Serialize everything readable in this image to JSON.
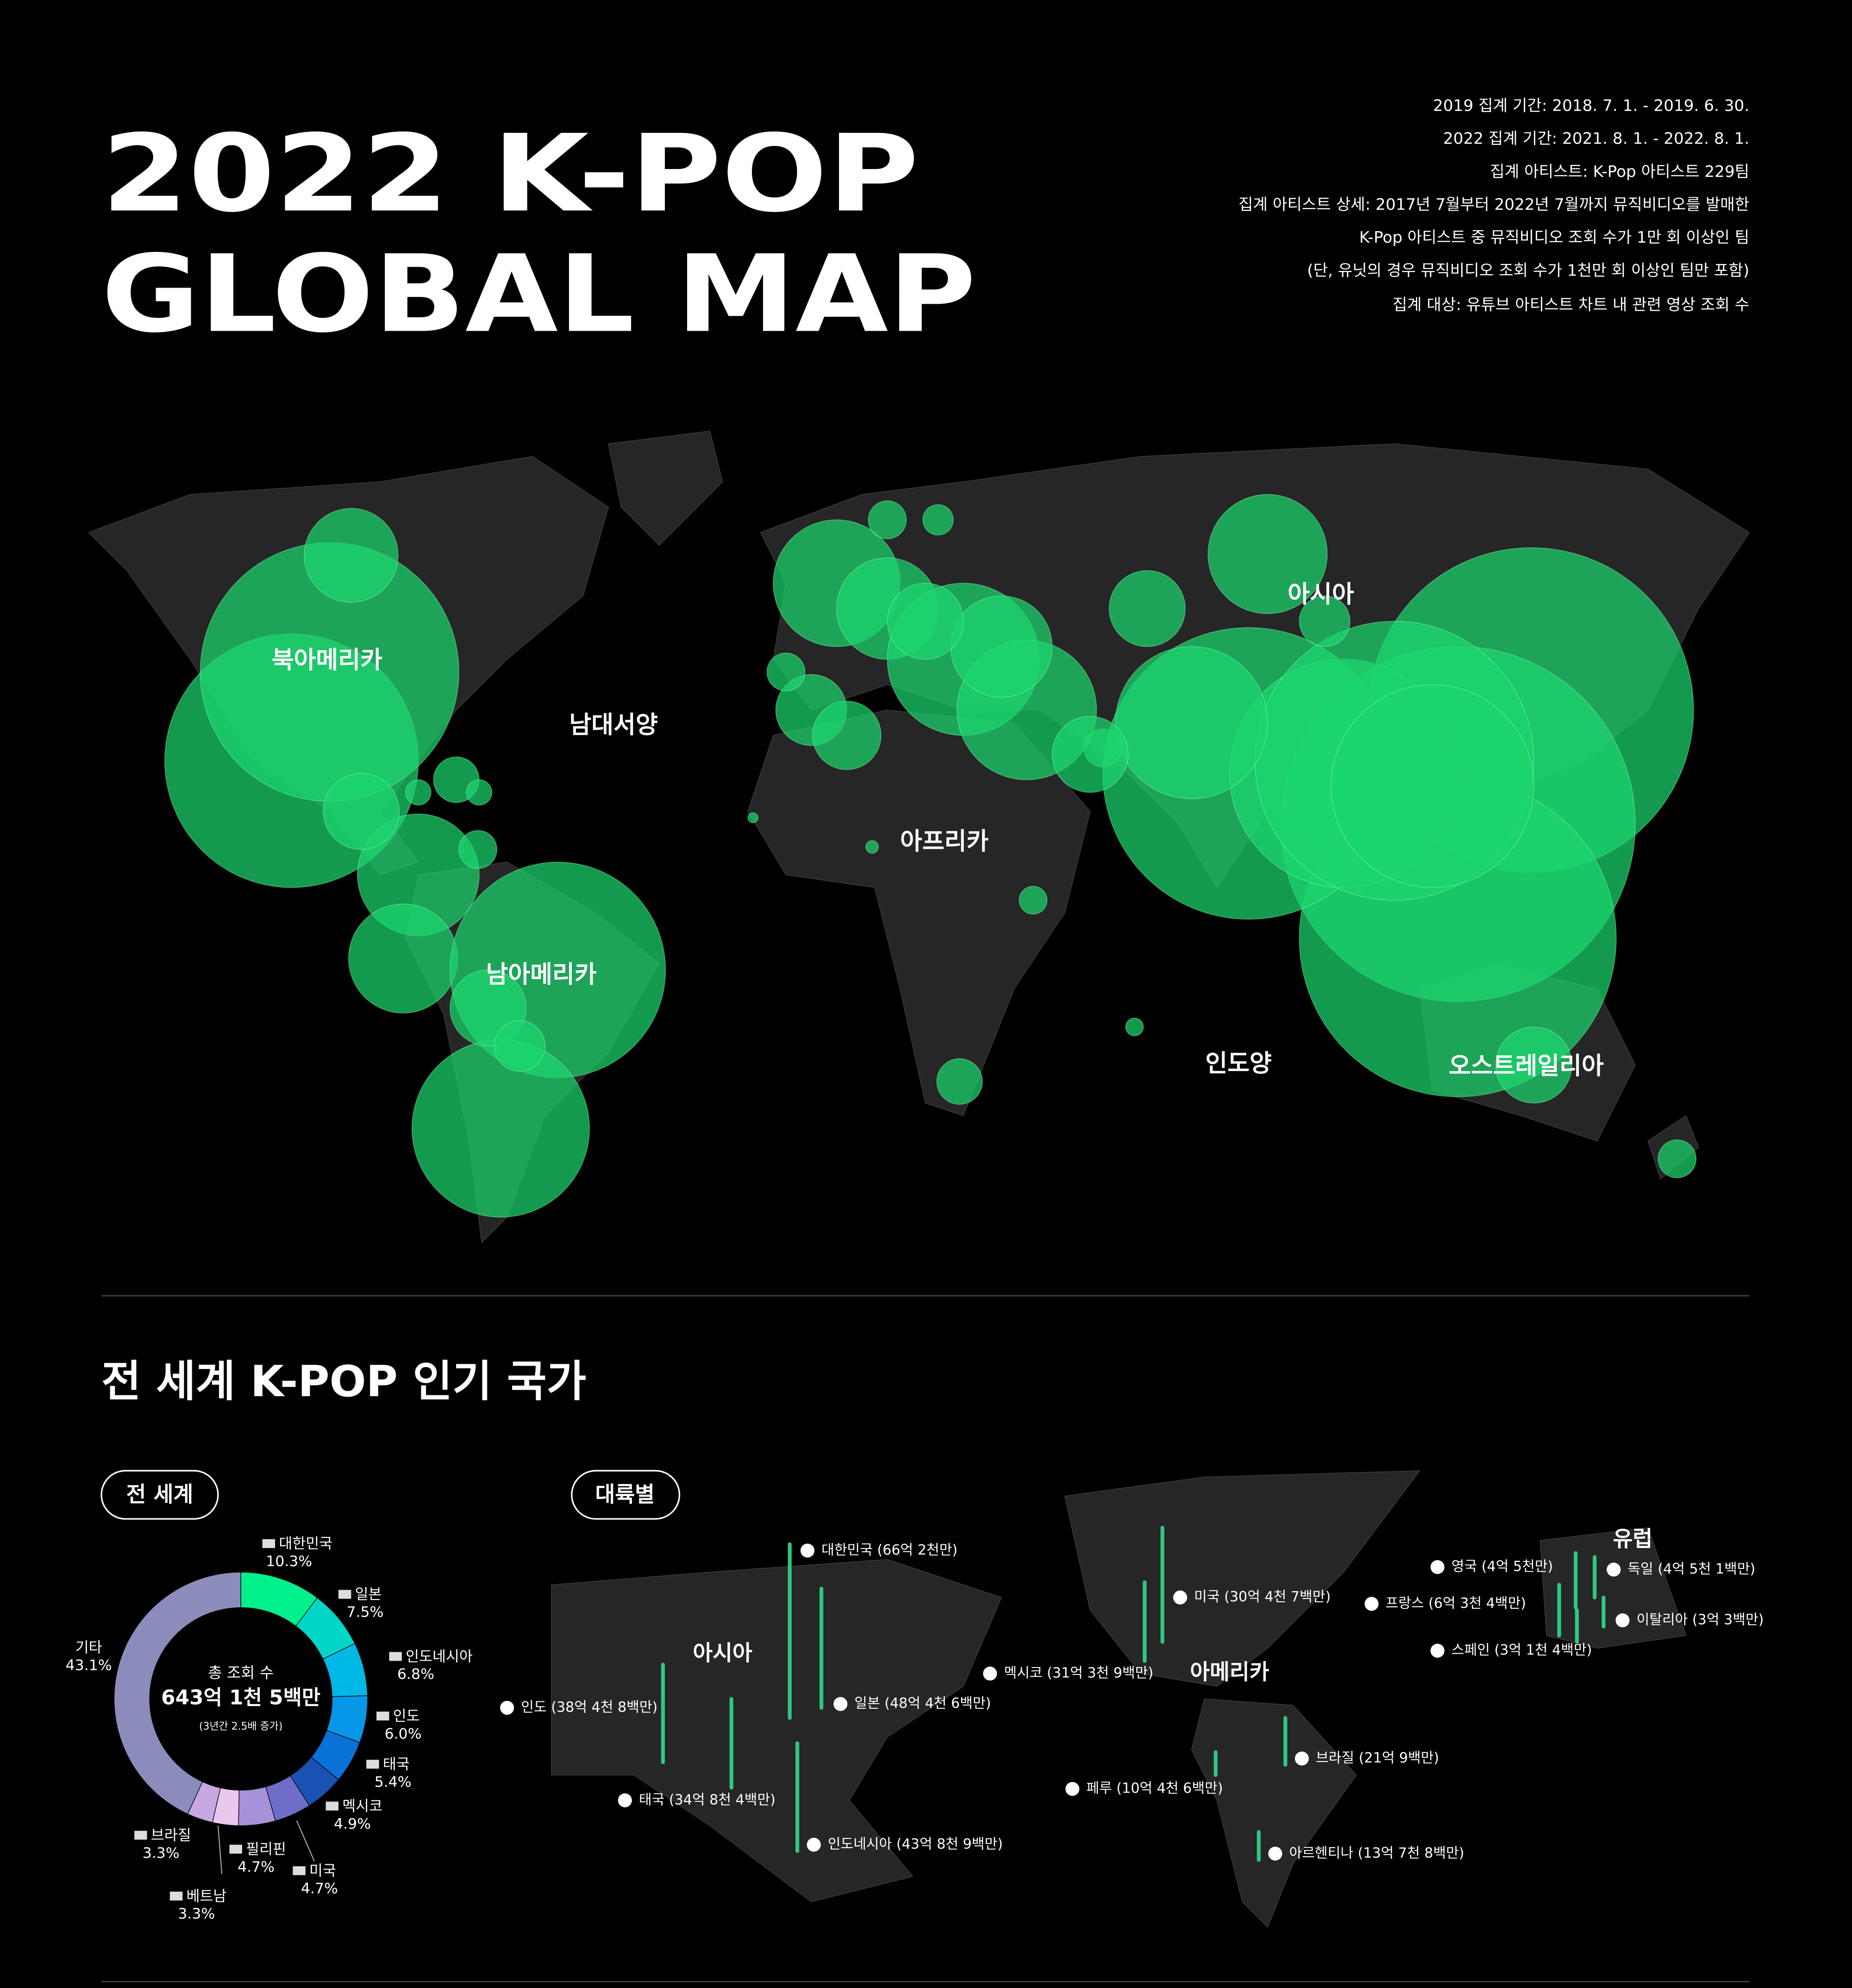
{
  "header": {
    "title_lines": [
      "2022 K-POP",
      "GLOBAL MAP"
    ],
    "notes": [
      "2019 집계 기간: 2018. 7. 1. - 2019. 6. 30.",
      "2022 집계 기간: 2021. 8. 1. - 2022. 8. 1.",
      "집계 아티스트: K-Pop 아티스트 229팀",
      "집계 아티스트 상세: 2017년 7월부터 2022년 7월까지 뮤직비디오를 발매한",
      "K-Pop 아티스트 중 뮤직비디오 조회 수가 1만 회 이상인 팀",
      "(단, 유닛의 경우 뮤직비디오 조회 수가 1천만 회 이상인 팀만 포함)",
      "집계 대상: 유튜브 아티스트 차트 내 관련 영상 조회 수"
    ]
  },
  "map": {
    "labels": [
      "북아메리카",
      "남대서양",
      "아프리카",
      "아시아",
      "남아메리카",
      "인도양",
      "오스트레일리아"
    ]
  },
  "section_title": "전 세계 K-POP 인기 국가",
  "chart_data": {
    "type": "pie",
    "donut": true,
    "tab": "전 세계",
    "center": {
      "label": "총 조회 수",
      "total": "643억 1천 5백만",
      "note": "(3년간 2.5배 증가)"
    },
    "categories": [
      "대한민국",
      "일본",
      "인도네시아",
      "인도",
      "태국",
      "멕시코",
      "미국",
      "필리핀",
      "베트남",
      "브라질",
      "기타"
    ],
    "values": [
      10.3,
      7.5,
      6.8,
      6.0,
      5.4,
      4.9,
      4.7,
      4.7,
      3.3,
      3.3,
      43.1
    ],
    "value_labels": [
      "10.3%",
      "7.5%",
      "6.8%",
      "6.0%",
      "5.4%",
      "4.9%",
      "4.7%",
      "4.7%",
      "3.3%",
      "3.3%",
      "43.1%"
    ],
    "colors": [
      "#00f08c",
      "#00d6c8",
      "#00b8e6",
      "#0896e8",
      "#0a72d6",
      "#1a52b4",
      "#6e6ec8",
      "#a592d8",
      "#e8c8ec",
      "#c8a8e0",
      "#8c8cbc"
    ]
  },
  "continents": {
    "tab": "대륙별",
    "groups": [
      {
        "name": "아시아",
        "items": [
          {
            "rank": 1,
            "label": "대한민국 (66억 2천만)"
          },
          {
            "rank": 2,
            "label": "일본 (48억 4천 6백만)"
          },
          {
            "rank": 3,
            "label": "인도네시아 (43억 8천 9백만)"
          },
          {
            "rank": 4,
            "label": "인도 (38억 4천 8백만)"
          },
          {
            "rank": 5,
            "label": "태국 (34억 8천 4백만)"
          }
        ]
      },
      {
        "name": "아메리카",
        "items": [
          {
            "rank": 1,
            "label": "멕시코 (31억 3천 9백만)"
          },
          {
            "rank": 2,
            "label": "미국 (30억 4천 7백만)"
          },
          {
            "rank": 3,
            "label": "브라질 (21억 9백만)"
          },
          {
            "rank": 4,
            "label": "아르헨티나 (13억 7천 8백만)"
          },
          {
            "rank": 5,
            "label": "페루 (10억 4천 6백만)"
          }
        ]
      },
      {
        "name": "유럽",
        "items": [
          {
            "rank": 1,
            "label": "프랑스 (6억 3천 4백만)"
          },
          {
            "rank": 2,
            "label": "독일 (4억 5천 1백만)"
          },
          {
            "rank": 3,
            "label": "영국 (4억 5천만)"
          },
          {
            "rank": 4,
            "label": "스페인 (3억 1천 4백만)"
          },
          {
            "rank": 5,
            "label": "이탈리아 (3억 3백만)"
          }
        ]
      }
    ]
  }
}
